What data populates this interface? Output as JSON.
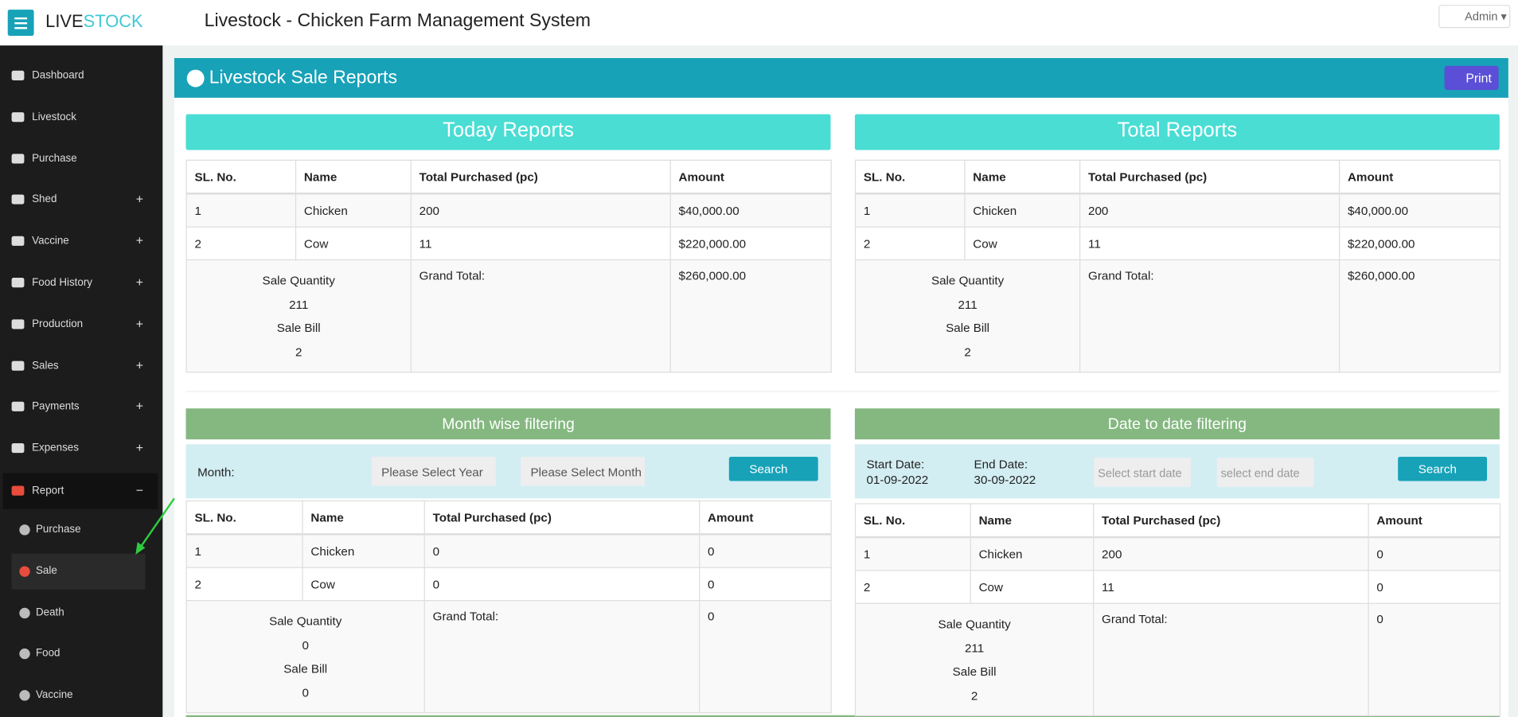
{
  "header": {
    "brand_left": "LIVE",
    "brand_right": "STOCK",
    "title": "Livestock - Chicken Farm Management System",
    "user": "Admin"
  },
  "sidebar": {
    "items": [
      {
        "label": "Dashboard"
      },
      {
        "label": "Livestock"
      },
      {
        "label": "Purchase"
      },
      {
        "label": "Shed",
        "toggle": "+"
      },
      {
        "label": "Vaccine",
        "toggle": "+"
      },
      {
        "label": "Food History",
        "toggle": "+"
      },
      {
        "label": "Production",
        "toggle": "+"
      },
      {
        "label": "Sales",
        "toggle": "+"
      },
      {
        "label": "Payments",
        "toggle": "+"
      },
      {
        "label": "Expenses",
        "toggle": "+"
      },
      {
        "label": "Report",
        "toggle": "−"
      }
    ],
    "submenu": [
      "Purchase",
      "Sale",
      "Death",
      "Food",
      "Vaccine"
    ]
  },
  "panel": {
    "title": "Livestock Sale Reports",
    "print": "Print"
  },
  "today": {
    "title": "Today Reports",
    "table": {
      "headers": [
        "SL. No.",
        "Name",
        "Total Purchased (pc)",
        "Amount"
      ],
      "rows": [
        [
          "1",
          "Chicken",
          "200",
          "$40,000.00"
        ],
        [
          "2",
          "Cow",
          "11",
          "$220,000.00"
        ]
      ],
      "summary": {
        "qty_label": "Sale Quantity",
        "qty": "211",
        "bill_label": "Sale Bill",
        "bill": "2",
        "grand_label": "Grand Total:",
        "grand": "$260,000.00"
      }
    }
  },
  "total": {
    "title": "Total Reports",
    "table": {
      "headers": [
        "SL. No.",
        "Name",
        "Total Purchased (pc)",
        "Amount"
      ],
      "rows": [
        [
          "1",
          "Chicken",
          "200",
          "$40,000.00"
        ],
        [
          "2",
          "Cow",
          "11",
          "$220,000.00"
        ]
      ],
      "summary": {
        "qty_label": "Sale Quantity",
        "qty": "211",
        "bill_label": "Sale Bill",
        "bill": "2",
        "grand_label": "Grand Total:",
        "grand": "$260,000.00"
      }
    }
  },
  "month_filter": {
    "title": "Month wise filtering",
    "label": "Month:",
    "year_select": "Please Select Year",
    "month_select": "Please Select Month",
    "search": "Search",
    "table": {
      "headers": [
        "SL. No.",
        "Name",
        "Total Purchased (pc)",
        "Amount"
      ],
      "rows": [
        [
          "1",
          "Chicken",
          "0",
          "0"
        ],
        [
          "2",
          "Cow",
          "0",
          "0"
        ]
      ],
      "summary": {
        "qty_label": "Sale Quantity",
        "qty": "0",
        "bill_label": "Sale Bill",
        "bill": "0",
        "grand_label": "Grand Total:",
        "grand": "0"
      }
    }
  },
  "date_filter": {
    "title": "Date to date filtering",
    "start_label": "Start Date:",
    "start_value": "01-09-2022",
    "end_label": "End Date:",
    "end_value": "30-09-2022",
    "start_placeholder": "Select start date",
    "end_placeholder": "select end date",
    "search": "Search",
    "table": {
      "headers": [
        "SL. No.",
        "Name",
        "Total Purchased (pc)",
        "Amount"
      ],
      "rows": [
        [
          "1",
          "Chicken",
          "200",
          "0"
        ],
        [
          "2",
          "Cow",
          "11",
          "0"
        ]
      ],
      "summary": {
        "qty_label": "Sale Quantity",
        "qty": "211",
        "bill_label": "Sale Bill",
        "bill": "2",
        "grand_label": "Grand Total:",
        "grand": "0"
      }
    }
  }
}
